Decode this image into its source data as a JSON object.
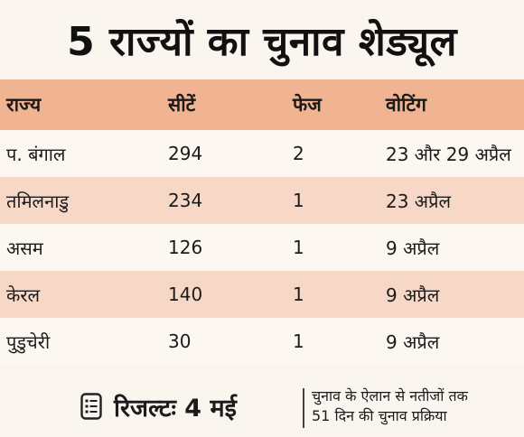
{
  "title": "5 राज्यों का चुनाव शेड्यूल",
  "table": {
    "headers": [
      "राज्य",
      "सीटें",
      "फेज",
      "वोटिंग"
    ],
    "rows": [
      {
        "state": "प. बंगाल",
        "seats": "294",
        "phases": "2",
        "voting": "23 और 29 अप्रैल"
      },
      {
        "state": "तमिलनाडु",
        "seats": "234",
        "phases": "1",
        "voting": "23 अप्रैल"
      },
      {
        "state": "असम",
        "seats": "126",
        "phases": "1",
        "voting": "9 अप्रैल"
      },
      {
        "state": "केरल",
        "seats": "140",
        "phases": "1",
        "voting": "9 अप्रैल"
      },
      {
        "state": "पुडुचेरी",
        "seats": "30",
        "phases": "1",
        "voting": "9 अप्रैल"
      }
    ]
  },
  "footer": {
    "icon": "list-icon",
    "result": "रिजल्टः 4 मई",
    "note_line1": "चुनाव के ऐलान से नतीजों तक",
    "note_line2": "51 दिन की चुनाव प्रक्रिया"
  },
  "colors": {
    "header_row": "#f0b493",
    "alt_row": "#f7d8c7",
    "background": "#fbf5ef"
  }
}
